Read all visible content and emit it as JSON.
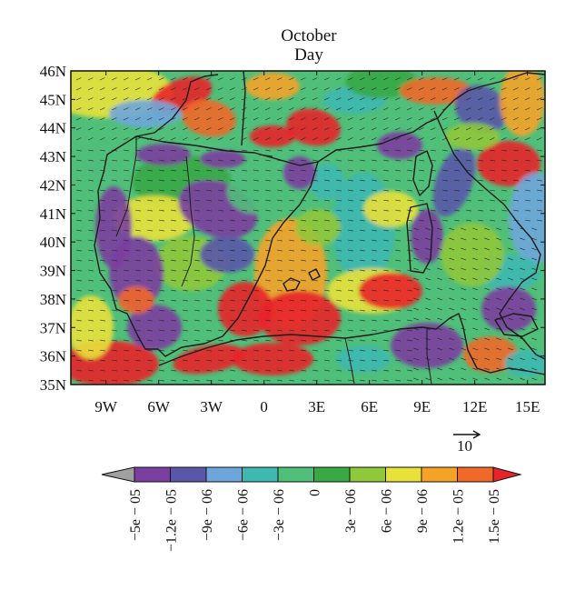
{
  "title": {
    "line1": "October",
    "line2": "Day"
  },
  "map": {
    "lat_labels": [
      "46N",
      "45N",
      "44N",
      "43N",
      "42N",
      "41N",
      "40N",
      "39N",
      "38N",
      "37N",
      "36N",
      "35N"
    ],
    "lon_labels": [
      "9W",
      "6W",
      "3W",
      "0",
      "3E",
      "6E",
      "9E",
      "12E",
      "15E"
    ],
    "lat_range": [
      35,
      46
    ],
    "lon_range": [
      -11,
      16
    ],
    "reference_vector": {
      "label": "10"
    }
  },
  "colorbar": {
    "labels": [
      "−5e − 05",
      "−1.2e − 05",
      "−9e − 06",
      "−6e − 06",
      "−3e − 06",
      "0",
      "3e − 06",
      "6e − 06",
      "9e − 06",
      "1.2e − 05",
      "1.5e − 05"
    ],
    "colors": [
      "#a0a0a0",
      "#7b3fa0",
      "#5a57a8",
      "#6ea6db",
      "#3fb8b0",
      "#4fbf7a",
      "#39a845",
      "#8fc83a",
      "#e8e13a",
      "#f5a327",
      "#f0682a",
      "#e8232a"
    ]
  },
  "palette": {
    "land_lines": "#1a1a1a",
    "arrow": "#222222"
  }
}
